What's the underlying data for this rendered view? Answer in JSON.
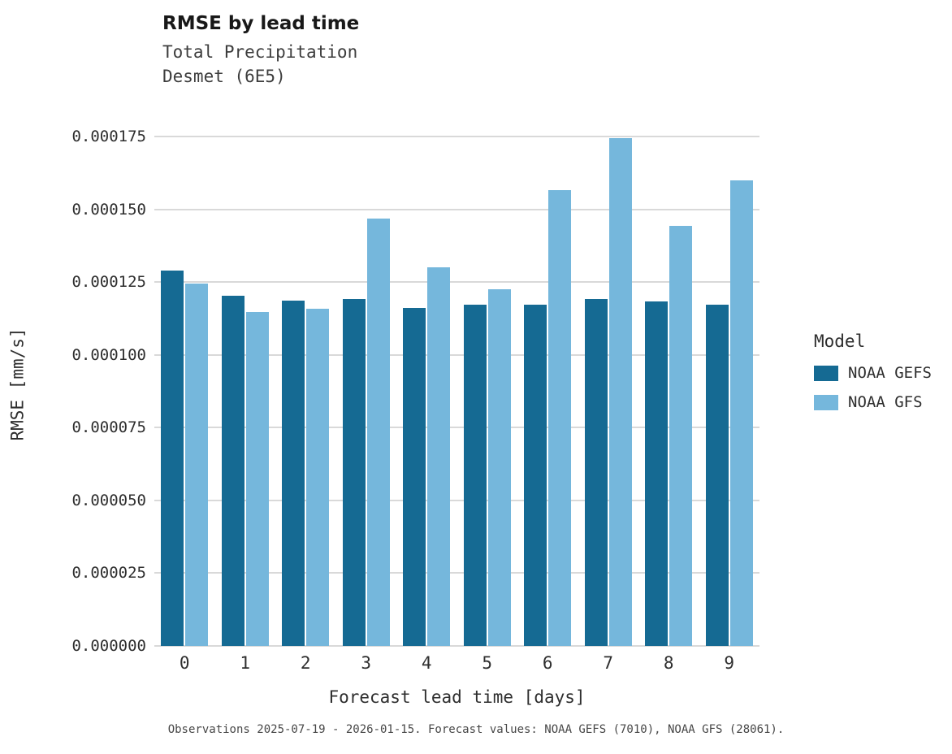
{
  "chart_data": {
    "type": "bar",
    "title": "RMSE by lead time",
    "subtitle_lines": [
      "Total Precipitation",
      "Desmet (6E5)"
    ],
    "xlabel": "Forecast lead time [days]",
    "ylabel": "RMSE [mm/s]",
    "legend_title": "Model",
    "legend_position": "right",
    "grid": "horizontal",
    "caption": "Observations 2025-07-19 - 2026-01-15. Forecast values: NOAA GEFS (7010), NOAA GFS (28061).",
    "categories": [
      "0",
      "1",
      "2",
      "3",
      "4",
      "5",
      "6",
      "7",
      "8",
      "9"
    ],
    "series": [
      {
        "name": "NOAA GEFS",
        "color": "#156a93",
        "values": [
          0.000129,
          0.0001204,
          0.0001185,
          0.0001193,
          0.000116,
          0.0001171,
          0.0001171,
          0.0001191,
          0.0001184,
          0.0001171
        ]
      },
      {
        "name": "NOAA GFS",
        "color": "#75b7dc",
        "values": [
          0.0001245,
          0.0001146,
          0.0001157,
          0.0001469,
          0.0001301,
          0.0001226,
          0.0001565,
          0.0001744,
          0.0001444,
          0.0001598
        ]
      }
    ],
    "yticks": [
      {
        "value": 0.0,
        "label": "0.000000"
      },
      {
        "value": 2.5e-05,
        "label": "0.000025"
      },
      {
        "value": 5e-05,
        "label": "0.000050"
      },
      {
        "value": 7.5e-05,
        "label": "0.000075"
      },
      {
        "value": 0.0001,
        "label": "0.000100"
      },
      {
        "value": 0.000125,
        "label": "0.000125"
      },
      {
        "value": 0.00015,
        "label": "0.000150"
      },
      {
        "value": 0.000175,
        "label": "0.000175"
      }
    ],
    "ylim": [
      0,
      0.000175
    ],
    "scale_max": 0.00018
  }
}
